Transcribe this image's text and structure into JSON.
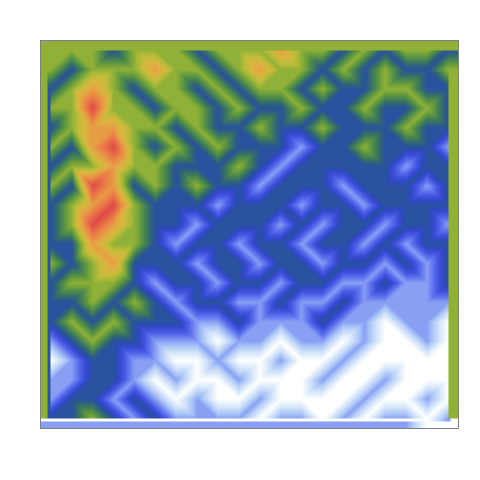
{
  "chart_data": {
    "type": "heatmap",
    "tick_labels": false,
    "cells": [
      [
        3,
        3,
        3,
        2,
        3,
        3,
        3,
        2,
        3,
        3,
        3,
        4,
        3,
        3,
        2,
        3,
        2,
        3,
        3,
        2
      ],
      [
        3,
        2,
        3,
        3,
        3,
        4,
        3,
        3,
        2,
        3,
        4,
        3,
        3,
        2,
        3,
        2,
        3,
        2,
        2,
        3
      ],
      [
        2,
        3,
        4,
        3,
        2,
        3,
        3,
        2,
        3,
        2,
        3,
        3,
        2,
        3,
        2,
        2,
        3,
        3,
        2,
        2
      ],
      [
        3,
        3,
        5,
        3,
        3,
        2,
        3,
        3,
        2,
        3,
        2,
        2,
        3,
        2,
        2,
        3,
        2,
        2,
        3,
        2
      ],
      [
        2,
        3,
        4,
        4,
        3,
        3,
        2,
        3,
        2,
        2,
        3,
        2,
        2,
        3,
        2,
        2,
        2,
        3,
        2,
        2
      ],
      [
        3,
        2,
        4,
        5,
        3,
        2,
        3,
        2,
        3,
        2,
        2,
        2,
        1,
        2,
        2,
        3,
        2,
        2,
        2,
        1
      ],
      [
        2,
        3,
        3,
        4,
        3,
        3,
        2,
        2,
        2,
        3,
        2,
        1,
        2,
        2,
        2,
        2,
        2,
        1,
        2,
        2
      ],
      [
        3,
        2,
        5,
        4,
        2,
        3,
        2,
        3,
        2,
        2,
        1,
        2,
        2,
        2,
        1,
        2,
        2,
        2,
        1,
        2
      ],
      [
        2,
        3,
        4,
        5,
        3,
        2,
        2,
        2,
        1,
        2,
        2,
        2,
        1,
        2,
        2,
        1,
        2,
        2,
        2,
        2
      ],
      [
        2,
        3,
        5,
        4,
        3,
        2,
        2,
        1,
        2,
        2,
        2,
        1,
        2,
        1,
        2,
        2,
        1,
        2,
        2,
        1
      ],
      [
        2,
        2,
        4,
        3,
        3,
        2,
        1,
        2,
        2,
        1,
        2,
        2,
        1,
        2,
        2,
        1,
        2,
        1,
        2,
        2
      ],
      [
        3,
        2,
        3,
        4,
        2,
        2,
        2,
        1,
        2,
        2,
        1,
        2,
        2,
        1,
        2,
        2,
        1,
        2,
        1,
        2
      ],
      [
        2,
        3,
        3,
        3,
        2,
        1,
        2,
        2,
        1,
        2,
        2,
        1,
        2,
        2,
        1,
        1,
        2,
        1,
        1,
        2
      ],
      [
        2,
        2,
        3,
        2,
        3,
        2,
        1,
        2,
        2,
        1,
        1,
        2,
        1,
        1,
        2,
        1,
        1,
        1,
        1,
        1
      ],
      [
        2,
        3,
        2,
        3,
        2,
        2,
        2,
        1,
        1,
        2,
        1,
        1,
        1,
        2,
        1,
        1,
        0,
        1,
        1,
        0
      ],
      [
        1,
        2,
        3,
        2,
        2,
        1,
        1,
        1,
        0,
        1,
        1,
        0,
        1,
        1,
        0,
        1,
        0,
        0,
        1,
        0
      ],
      [
        0,
        1,
        2,
        2,
        1,
        1,
        0,
        0,
        1,
        0,
        0,
        1,
        0,
        0,
        1,
        0,
        0,
        0,
        0,
        0
      ],
      [
        1,
        1,
        2,
        2,
        1,
        0,
        1,
        0,
        0,
        1,
        0,
        0,
        0,
        1,
        0,
        0,
        1,
        0,
        0,
        0
      ],
      [
        1,
        2,
        2,
        1,
        2,
        1,
        0,
        1,
        0,
        0,
        1,
        0,
        0,
        0,
        0,
        1,
        0,
        0,
        1,
        0
      ],
      [
        2,
        2,
        3,
        2,
        1,
        2,
        1,
        1,
        1,
        1,
        0,
        1,
        1,
        0,
        1,
        0,
        1,
        1,
        0,
        1
      ]
    ]
  }
}
